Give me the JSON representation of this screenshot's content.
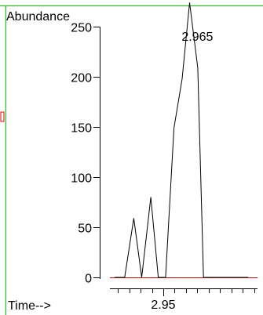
{
  "chart_data": {
    "type": "line",
    "ylabel": "Abundance",
    "xlabel": "Time-->",
    "x_tick_labels": [
      "2.95"
    ],
    "x_tick_label_value": 2.95,
    "y_ticks": [
      0,
      50,
      100,
      150,
      200,
      250
    ],
    "ylim": [
      0,
      275
    ],
    "xlim": [
      2.9265,
      2.9915
    ],
    "peak_label": "2.965",
    "peak_label_x": 2.965,
    "series": [
      {
        "x": [
          2.9285,
          2.933,
          2.937,
          2.9405,
          2.9445,
          2.9478,
          2.951,
          2.9547,
          2.9583,
          2.9616,
          2.9652,
          2.9677,
          2.9721,
          2.9767,
          2.9874
        ],
        "y": [
          0,
          0,
          59,
          0,
          80,
          0,
          0,
          149,
          198,
          274,
          209,
          0,
          0,
          0,
          0
        ]
      }
    ],
    "colors": {
      "border": "#00cc00",
      "trace": "#000000",
      "baseline": "#cc0000",
      "side_mark": "#dd0000"
    }
  }
}
